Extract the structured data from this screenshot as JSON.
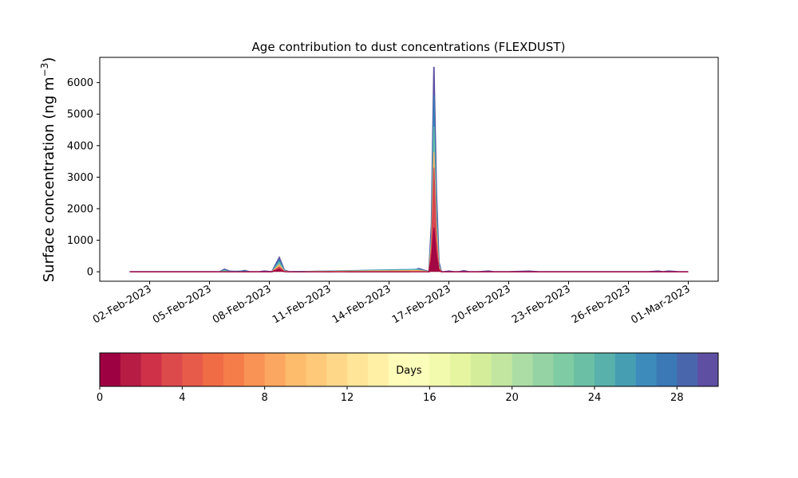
{
  "chart_data": {
    "type": "area",
    "title": "Age contribution to dust concentrations (FLEXDUST)",
    "ylabel_main": "Surface concentration (ng m",
    "ylabel_sup": "−3",
    "ylabel_close": ")",
    "xlabel": "",
    "ylim": [
      -300,
      6800
    ],
    "yticks": [
      0,
      1000,
      2000,
      3000,
      4000,
      5000,
      6000
    ],
    "xlim": [
      "2023-01-30T12:00",
      "2023-03-02T12:00"
    ],
    "xticks": [
      "2023-02-02",
      "2023-02-05",
      "2023-02-08",
      "2023-02-11",
      "2023-02-14",
      "2023-02-17",
      "2023-02-20",
      "2023-02-23",
      "2023-02-26",
      "2023-03-01"
    ],
    "xtick_labels": [
      "02-Feb-2023",
      "05-Feb-2023",
      "08-Feb-2023",
      "11-Feb-2023",
      "14-Feb-2023",
      "17-Feb-2023",
      "20-Feb-2023",
      "23-Feb-2023",
      "26-Feb-2023",
      "01-Mar-2023"
    ],
    "series": [
      {
        "color": "#5e4fa2",
        "x": [
          "2023-02-01T00:00",
          "2023-02-04T00:00",
          "2023-02-05T00:00",
          "2023-02-05T12:00",
          "2023-02-05T18:00",
          "2023-02-06T00:00",
          "2023-02-06T06:00",
          "2023-02-06T12:00",
          "2023-02-06T18:00",
          "2023-02-07T00:00",
          "2023-02-07T12:00",
          "2023-02-07T18:00",
          "2023-02-08T03:00",
          "2023-02-08T12:00",
          "2023-02-08T18:00",
          "2023-02-09T00:00",
          "2023-02-10T12:00",
          "2023-02-11T00:00",
          "2023-02-11T12:00",
          "2023-02-12T00:00",
          "2023-02-13T00:00",
          "2023-02-14T00:00",
          "2023-02-14T12:00",
          "2023-02-14T18:00",
          "2023-02-15T00:00",
          "2023-02-15T12:00",
          "2023-02-16T00:00",
          "2023-02-16T03:00",
          "2023-02-16T06:00",
          "2023-02-16T09:00",
          "2023-02-16T12:00",
          "2023-02-16T15:00",
          "2023-02-16T18:00",
          "2023-02-17T00:00",
          "2023-02-17T06:00",
          "2023-02-17T12:00",
          "2023-02-17T18:00",
          "2023-02-18T00:00",
          "2023-02-18T12:00",
          "2023-02-19T00:00",
          "2023-02-19T06:00",
          "2023-02-19T12:00",
          "2023-02-20T00:00",
          "2023-02-21T00:00",
          "2023-02-21T12:00",
          "2023-02-22T00:00",
          "2023-02-23T00:00",
          "2023-02-24T00:00",
          "2023-02-25T00:00",
          "2023-02-26T00:00",
          "2023-02-27T00:00",
          "2023-02-27T12:00",
          "2023-02-27T18:00",
          "2023-02-28T00:00",
          "2023-02-28T12:00",
          "2023-03-01T00:00"
        ],
        "y": [
          0,
          0,
          0,
          0,
          80,
          20,
          10,
          0,
          40,
          0,
          0,
          20,
          0,
          450,
          50,
          0,
          10,
          0,
          20,
          0,
          0,
          0,
          0,
          0,
          0,
          100,
          0,
          1500,
          6500,
          2500,
          300,
          0,
          0,
          20,
          0,
          0,
          30,
          0,
          0,
          20,
          0,
          0,
          0,
          20,
          0,
          0,
          0,
          0,
          0,
          0,
          0,
          20,
          0,
          20,
          0,
          0
        ]
      },
      {
        "color": "#3288bd",
        "x": [
          "2023-02-01T00:00",
          "2023-02-05T12:00",
          "2023-02-05T18:00",
          "2023-02-06T00:00",
          "2023-02-06T18:00",
          "2023-02-07T00:00",
          "2023-02-08T03:00",
          "2023-02-08T12:00",
          "2023-02-08T18:00",
          "2023-02-09T00:00",
          "2023-02-15T12:00",
          "2023-02-16T00:00",
          "2023-02-16T03:00",
          "2023-02-16T06:00",
          "2023-02-16T09:00",
          "2023-02-16T12:00",
          "2023-02-16T15:00",
          "2023-03-01T00:00"
        ],
        "y": [
          0,
          0,
          60,
          10,
          30,
          0,
          0,
          380,
          40,
          0,
          80,
          0,
          1300,
          5600,
          2100,
          250,
          0,
          0
        ]
      },
      {
        "color": "#66c2a5",
        "x": [
          "2023-02-01T00:00",
          "2023-02-05T12:00",
          "2023-02-05T18:00",
          "2023-02-06T00:00",
          "2023-02-08T03:00",
          "2023-02-08T12:00",
          "2023-02-08T18:00",
          "2023-02-09T00:00",
          "2023-02-15T12:00",
          "2023-02-16T00:00",
          "2023-02-16T03:00",
          "2023-02-16T06:00",
          "2023-02-16T09:00",
          "2023-02-16T12:00",
          "2023-02-16T15:00",
          "2023-03-01T00:00"
        ],
        "y": [
          0,
          0,
          40,
          0,
          0,
          300,
          30,
          0,
          60,
          0,
          1100,
          4600,
          1700,
          200,
          0,
          0
        ]
      },
      {
        "color": "#fdae61",
        "x": [
          "2023-02-01T00:00",
          "2023-02-08T03:00",
          "2023-02-08T12:00",
          "2023-02-08T18:00",
          "2023-02-09T00:00",
          "2023-02-15T12:00",
          "2023-02-16T00:00",
          "2023-02-16T03:00",
          "2023-02-16T06:00",
          "2023-02-16T09:00",
          "2023-02-16T12:00",
          "2023-02-16T15:00",
          "2023-03-01T00:00"
        ],
        "y": [
          0,
          0,
          220,
          20,
          0,
          40,
          0,
          900,
          3800,
          1300,
          150,
          0,
          0
        ]
      },
      {
        "color": "#d53e4f",
        "x": [
          "2023-02-01T00:00",
          "2023-02-08T03:00",
          "2023-02-08T12:00",
          "2023-02-08T18:00",
          "2023-02-09T00:00",
          "2023-02-16T00:00",
          "2023-02-16T03:00",
          "2023-02-16T06:00",
          "2023-02-16T09:00",
          "2023-02-16T12:00",
          "2023-02-16T15:00",
          "2023-03-01T00:00"
        ],
        "y": [
          0,
          0,
          150,
          10,
          0,
          0,
          700,
          3300,
          1000,
          100,
          0,
          0
        ]
      },
      {
        "color": "#9e0142",
        "x": [
          "2023-02-01T00:00",
          "2023-02-08T03:00",
          "2023-02-08T12:00",
          "2023-02-08T18:00",
          "2023-02-09T00:00",
          "2023-02-16T00:00",
          "2023-02-16T03:00",
          "2023-02-16T06:00",
          "2023-02-16T09:00",
          "2023-02-16T12:00",
          "2023-02-16T15:00",
          "2023-03-01T00:00"
        ],
        "y": [
          0,
          0,
          80,
          0,
          0,
          0,
          400,
          1400,
          500,
          50,
          0,
          0
        ]
      }
    ],
    "colorbar": {
      "label": "Days",
      "range": [
        0,
        30
      ],
      "ticks": [
        0,
        4,
        8,
        12,
        16,
        20,
        24,
        28
      ],
      "colors": [
        "#9e0142",
        "#b71c44",
        "#ce3148",
        "#dc4a4c",
        "#e75b4a",
        "#f06c45",
        "#f57d4a",
        "#f99355",
        "#fca761",
        "#fdbb6c",
        "#fec979",
        "#fed788",
        "#fee597",
        "#fff0a6",
        "#fffbb8",
        "#fbfdba",
        "#f2faad",
        "#e5f5a0",
        "#d4ed9b",
        "#c2e69f",
        "#abdda4",
        "#95d3a4",
        "#7ecba4",
        "#6abfa5",
        "#58b1aa",
        "#469eb3",
        "#3d8bbb",
        "#3b78b6",
        "#4966ad",
        "#5e4fa2"
      ]
    }
  }
}
